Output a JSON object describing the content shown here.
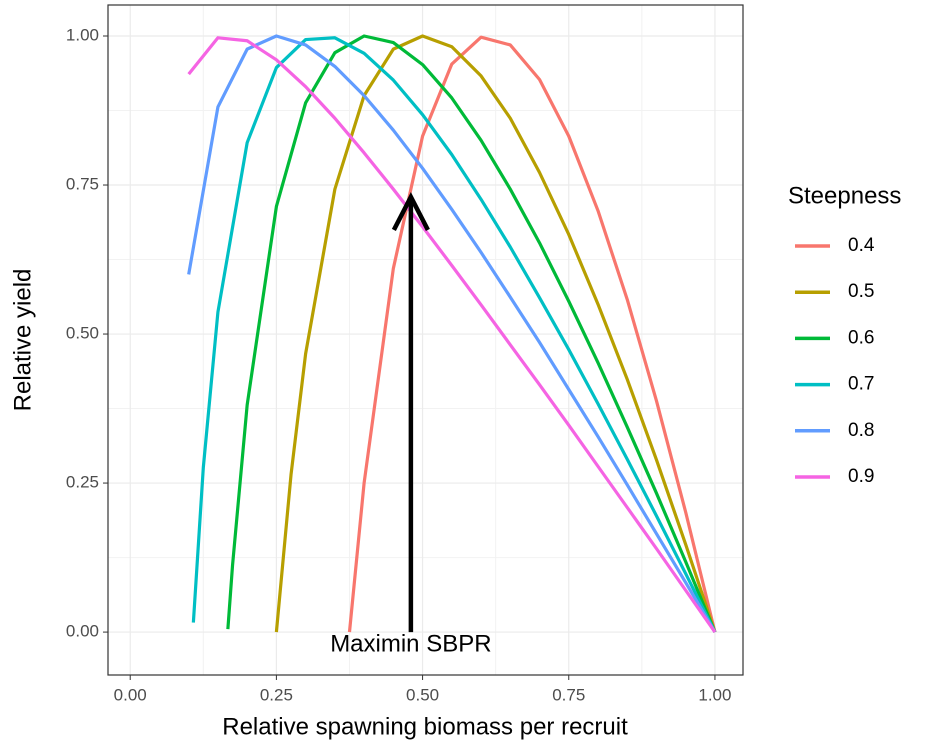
{
  "chart_data": {
    "type": "line",
    "x_label": "Relative spawning biomass per recruit",
    "y_label": "Relative yield",
    "legend_title": "Steepness",
    "legend_position": "right",
    "grid": true,
    "xlim": [
      -0.038,
      1.048
    ],
    "ylim": [
      -0.072,
      1.052
    ],
    "xticks": [
      {
        "value": 0,
        "label": "0.00"
      },
      {
        "value": 0.25,
        "label": "0.25"
      },
      {
        "value": 0.5,
        "label": "0.50"
      },
      {
        "value": 0.75,
        "label": "0.75"
      },
      {
        "value": 1,
        "label": "1.00"
      }
    ],
    "yticks": [
      {
        "value": 0,
        "label": "0.00"
      },
      {
        "value": 0.25,
        "label": "0.25"
      },
      {
        "value": 0.5,
        "label": "0.50"
      },
      {
        "value": 0.75,
        "label": "0.75"
      },
      {
        "value": 1,
        "label": "1.00"
      }
    ],
    "series": [
      {
        "name": "0.4",
        "color": "#F8766D",
        "x": [
          0.375,
          0.4,
          0.45,
          0.5,
          0.55,
          0.6,
          0.65,
          0.7,
          0.75,
          0.8,
          0.85,
          0.9,
          0.95,
          1
        ],
        "values": [
          0,
          0.25,
          0.61,
          0.832,
          0.953,
          0.998,
          0.985,
          0.927,
          0.832,
          0.707,
          0.558,
          0.388,
          0.201,
          0
        ]
      },
      {
        "name": "0.5",
        "color": "#B79F00",
        "x": [
          0.25,
          0.275,
          0.3,
          0.35,
          0.4,
          0.45,
          0.5,
          0.55,
          0.6,
          0.65,
          0.7,
          0.75,
          0.8,
          0.85,
          0.9,
          0.95,
          1
        ],
        "values": [
          0,
          0.264,
          0.467,
          0.743,
          0.9,
          0.978,
          1,
          0.982,
          0.933,
          0.862,
          0.771,
          0.667,
          0.55,
          0.424,
          0.289,
          0.147,
          0
        ]
      },
      {
        "name": "0.6",
        "color": "#00BA38",
        "x": [
          0.167,
          0.175,
          0.2,
          0.25,
          0.3,
          0.35,
          0.4,
          0.45,
          0.5,
          0.55,
          0.6,
          0.65,
          0.7,
          0.75,
          0.8,
          0.85,
          0.9,
          0.95,
          1
        ],
        "values": [
          0.005,
          0.112,
          0.381,
          0.714,
          0.888,
          0.972,
          1,
          0.989,
          0.952,
          0.896,
          0.825,
          0.743,
          0.653,
          0.555,
          0.452,
          0.344,
          0.233,
          0.118,
          0
        ]
      },
      {
        "name": "0.7",
        "color": "#00BFC4",
        "x": [
          0.108,
          0.125,
          0.15,
          0.2,
          0.25,
          0.3,
          0.35,
          0.4,
          0.45,
          0.5,
          0.55,
          0.6,
          0.65,
          0.7,
          0.75,
          0.8,
          0.85,
          0.9,
          0.95,
          1
        ],
        "values": [
          0.016,
          0.276,
          0.537,
          0.821,
          0.947,
          0.994,
          0.997,
          0.971,
          0.926,
          0.868,
          0.801,
          0.726,
          0.646,
          0.561,
          0.474,
          0.383,
          0.29,
          0.195,
          0.098,
          0
        ]
      },
      {
        "name": "0.8",
        "color": "#619CFF",
        "x": [
          0.1,
          0.15,
          0.2,
          0.25,
          0.3,
          0.35,
          0.4,
          0.45,
          0.5,
          0.55,
          0.6,
          0.65,
          0.7,
          0.75,
          0.8,
          0.85,
          0.9,
          0.95,
          1
        ],
        "values": [
          0.6,
          0.881,
          0.978,
          1,
          0.985,
          0.949,
          0.9,
          0.842,
          0.778,
          0.709,
          0.637,
          0.562,
          0.486,
          0.407,
          0.328,
          0.247,
          0.165,
          0.083,
          0
        ]
      },
      {
        "name": "0.9",
        "color": "#F564E3",
        "x": [
          0.1,
          0.15,
          0.2,
          0.25,
          0.3,
          0.35,
          0.4,
          0.45,
          0.5,
          0.55,
          0.6,
          0.65,
          0.7,
          0.75,
          0.8,
          0.85,
          0.9,
          0.95,
          1
        ],
        "values": [
          0.936,
          0.997,
          0.992,
          0.96,
          0.915,
          0.862,
          0.804,
          0.743,
          0.68,
          0.615,
          0.549,
          0.482,
          0.415,
          0.347,
          0.278,
          0.209,
          0.14,
          0.07,
          0
        ]
      }
    ],
    "annotation": {
      "text": "Maximin SBPR",
      "x": 0.48,
      "y": -0.022,
      "arrow_from": 0,
      "arrow_to": 0.73
    }
  }
}
